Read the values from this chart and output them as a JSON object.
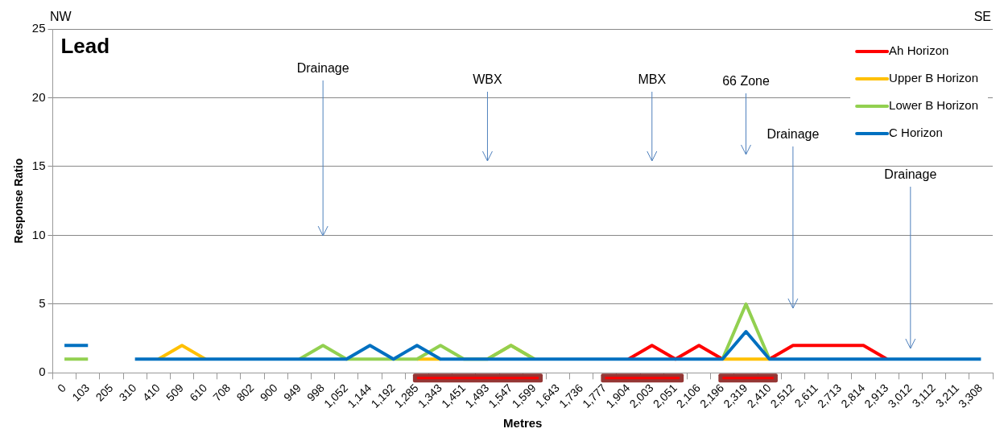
{
  "chart_data": {
    "type": "line",
    "title": "Lead",
    "xlabel": "Metres",
    "ylabel": "Response Ratio",
    "categories": [
      "0",
      "103",
      "205",
      "310",
      "410",
      "509",
      "610",
      "708",
      "802",
      "900",
      "949",
      "998",
      "1,052",
      "1,144",
      "1,192",
      "1,285",
      "1,343",
      "1,451",
      "1,493",
      "1,547",
      "1,599",
      "1,643",
      "1,736",
      "1,777",
      "1,904",
      "2,003",
      "2,051",
      "2,106",
      "2,196",
      "2,319",
      "2,410",
      "2,512",
      "2,611",
      "2,713",
      "2,814",
      "2,913",
      "3,012",
      "3,112",
      "3,211",
      "3,308"
    ],
    "series": [
      {
        "name": "Ah Horizon",
        "color": "#ff0000",
        "values": [
          null,
          null,
          null,
          null,
          null,
          null,
          null,
          null,
          null,
          null,
          null,
          null,
          null,
          null,
          null,
          null,
          null,
          null,
          null,
          null,
          null,
          null,
          null,
          null,
          1,
          2,
          1,
          2,
          1,
          null,
          1,
          2,
          2,
          2,
          2,
          1,
          null,
          null,
          null,
          null
        ]
      },
      {
        "name": "Upper B Horizon",
        "color": "#ffc000",
        "values": [
          null,
          null,
          null,
          null,
          1,
          2,
          1,
          null,
          null,
          null,
          null,
          null,
          null,
          null,
          null,
          1,
          1,
          null,
          1,
          2,
          1,
          null,
          null,
          null,
          null,
          null,
          null,
          null,
          1,
          1,
          1,
          null,
          null,
          null,
          null,
          null,
          null,
          null,
          null,
          null
        ]
      },
      {
        "name": "Lower B Horizon",
        "color": "#92d050",
        "values": [
          1,
          1,
          null,
          null,
          null,
          null,
          null,
          null,
          null,
          null,
          1,
          2,
          1,
          1,
          1,
          1,
          2,
          1,
          1,
          2,
          1,
          null,
          null,
          null,
          null,
          null,
          null,
          null,
          1,
          5,
          1,
          null,
          null,
          null,
          null,
          null,
          null,
          null,
          null,
          null
        ]
      },
      {
        "name": "C Horizon",
        "color": "#0070c0",
        "values": [
          2,
          2,
          null,
          1,
          1,
          1,
          1,
          1,
          1,
          1,
          1,
          1,
          1,
          2,
          1,
          2,
          1,
          1,
          1,
          1,
          1,
          1,
          1,
          1,
          1,
          1,
          1,
          1,
          1,
          3,
          1,
          1,
          1,
          1,
          1,
          1,
          1,
          1,
          1,
          1
        ]
      }
    ],
    "ylim": [
      0,
      25
    ],
    "yticks": [
      0,
      5,
      10,
      15,
      20,
      25
    ],
    "grid": "y",
    "legend": "top right",
    "marker": "none",
    "line_style": "solid",
    "annotations": [
      "NW",
      "SE",
      "Drainage",
      "WBX",
      "MBX",
      "66 Zone",
      "Drainage",
      "Drainage"
    ]
  }
}
